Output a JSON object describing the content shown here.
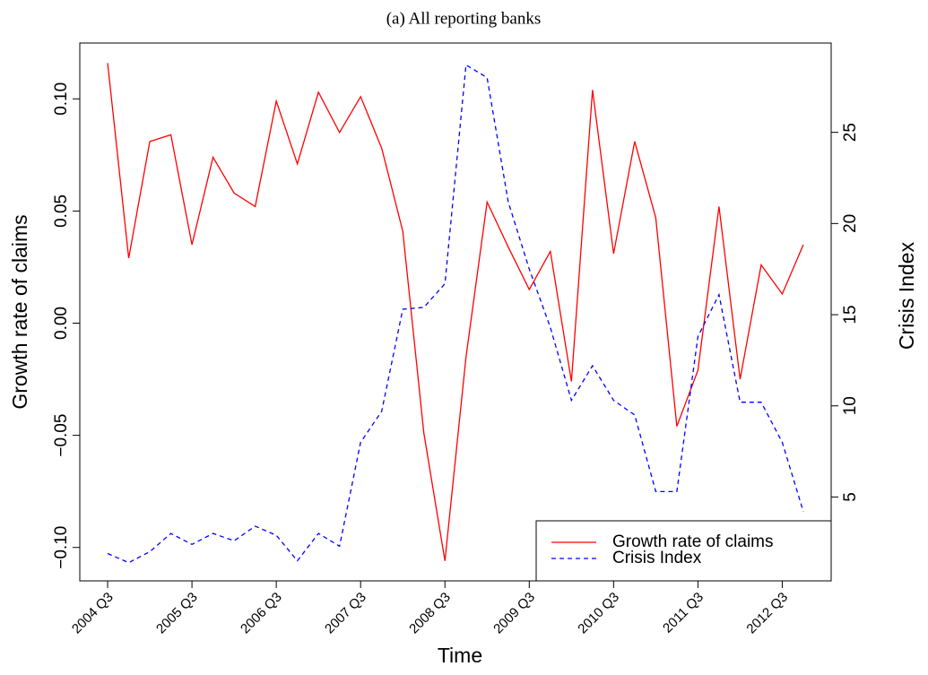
{
  "chart_data": {
    "type": "line",
    "title": "(a) All reporting banks",
    "x_label": "Time",
    "y_label": "Growth rate of claims",
    "y2_label": "Crisis Index",
    "categories": [
      "2004 Q3",
      null,
      null,
      null,
      "2005 Q3",
      null,
      null,
      null,
      "2006 Q3",
      null,
      null,
      null,
      "2007 Q3",
      null,
      null,
      null,
      "2008 Q3",
      null,
      null,
      null,
      "2009 Q3",
      null,
      null,
      null,
      "2010 Q3",
      null,
      null,
      null,
      "2011 Q3",
      null,
      null,
      null,
      "2012 Q3",
      null
    ],
    "series": [
      {
        "name": "Growth rate of claims",
        "color": "#ff0000",
        "dash": false,
        "axis": "y",
        "values": [
          0.116,
          0.029,
          0.081,
          0.084,
          0.035,
          0.074,
          0.058,
          0.052,
          0.099,
          0.071,
          0.103,
          0.085,
          0.101,
          0.078,
          0.041,
          -0.049,
          -0.106,
          -0.015,
          0.054,
          0.034,
          0.015,
          0.032,
          -0.026,
          0.104,
          0.031,
          0.081,
          0.047,
          -0.046,
          -0.021,
          0.052,
          -0.025,
          0.026,
          0.013,
          0.035
        ]
      },
      {
        "name": "Crisis Index",
        "color": "#0000ff",
        "dash": true,
        "axis": "y2",
        "values": [
          1.9,
          1.4,
          2.0,
          3.0,
          2.4,
          3.0,
          2.6,
          3.4,
          2.9,
          1.5,
          3.0,
          2.3,
          8.0,
          9.7,
          15.3,
          15.4,
          16.7,
          28.7,
          28.0,
          21.2,
          17.5,
          14.3,
          10.3,
          12.2,
          10.3,
          9.5,
          5.3,
          5.3,
          13.8,
          16.1,
          10.2,
          10.2,
          8.0,
          4.2
        ]
      }
    ],
    "ylim": [
      -0.1149,
      0.1249
    ],
    "yticks": [
      {
        "value": -0.1,
        "label": "−0.10"
      },
      {
        "value": -0.05,
        "label": "−0.05"
      },
      {
        "value": 0,
        "label": "0.00"
      },
      0.05,
      {
        "value": 0.1,
        "label": "0.10"
      }
    ],
    "y2lim": [
      0.4,
      29.9
    ],
    "y2ticks": [
      5,
      10,
      15,
      20,
      25
    ],
    "legend": "bottom-right",
    "grid": false
  }
}
